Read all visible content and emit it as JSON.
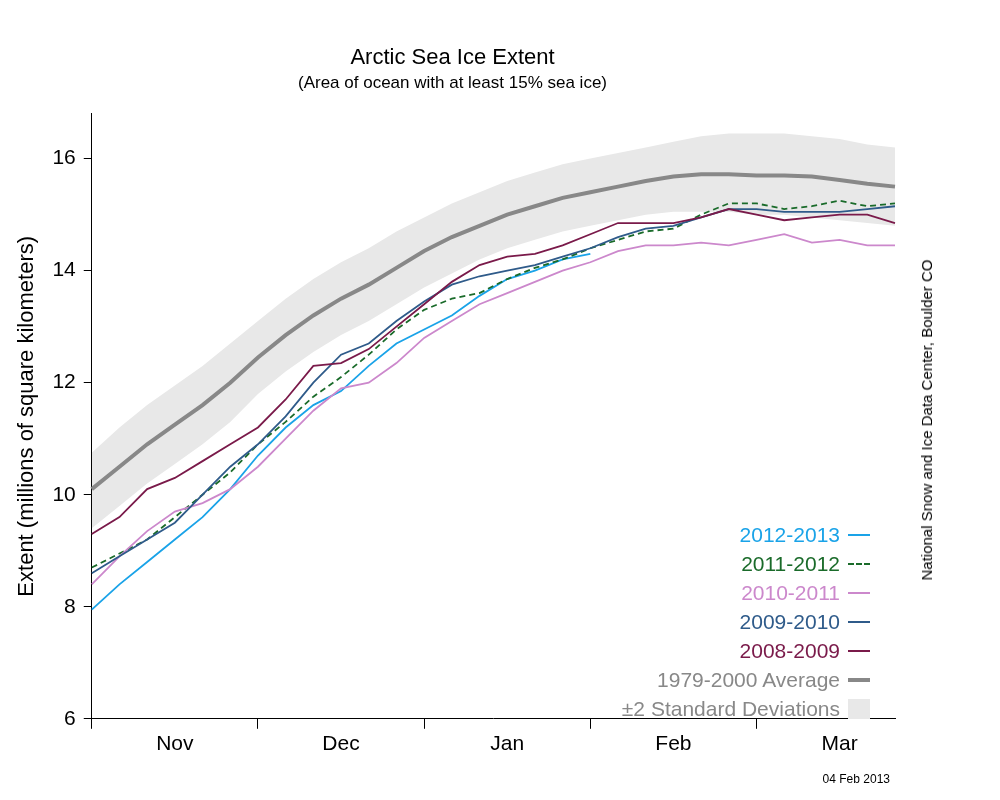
{
  "chart_data": {
    "type": "line",
    "title": "Arctic Sea Ice Extent",
    "subtitle": "(Area of ocean with at least 15% sea ice)",
    "y_label": "Extent (millions of square kilometers)",
    "source": "National Snow and Ice Data Center, Boulder CO",
    "note": "04 Feb 2013",
    "categories": [
      null,
      null,
      null,
      "Nov",
      null,
      null,
      null,
      null,
      null,
      "Dec",
      null,
      null,
      null,
      null,
      null,
      "Jan",
      null,
      null,
      null,
      null,
      null,
      "Feb",
      null,
      null,
      null,
      null,
      null,
      "Mar",
      null,
      null
    ],
    "series": [
      {
        "name": "2012-2013",
        "color": "#1aa3e8",
        "line_style": "solid",
        "values": [
          7.95,
          8.4,
          8.8,
          9.2,
          9.6,
          10.1,
          10.7,
          11.2,
          11.6,
          11.85,
          12.3,
          12.7,
          12.95,
          13.2,
          13.55,
          13.85,
          14.0,
          14.2,
          14.3,
          null,
          null,
          null,
          null,
          null,
          null,
          null,
          null,
          null,
          null,
          null
        ]
      },
      {
        "name": "2011-2012",
        "color": "#1a6b2a",
        "line_style": "dashed",
        "values": [
          8.7,
          8.95,
          9.2,
          9.6,
          10.0,
          10.4,
          10.9,
          11.3,
          11.75,
          12.1,
          12.5,
          12.95,
          13.3,
          13.5,
          13.6,
          13.85,
          14.05,
          14.2,
          14.4,
          14.55,
          14.7,
          14.75,
          15.0,
          15.2,
          15.2,
          15.1,
          15.15,
          15.25,
          15.15,
          15.2
        ]
      },
      {
        "name": "2010-2011",
        "color": "#cc88cc",
        "line_style": "solid",
        "values": [
          8.4,
          8.9,
          9.35,
          9.7,
          9.85,
          10.1,
          10.5,
          11.0,
          11.5,
          11.9,
          12.0,
          12.35,
          12.8,
          13.1,
          13.4,
          13.6,
          13.8,
          14.0,
          14.15,
          14.35,
          14.45,
          14.45,
          14.5,
          14.45,
          14.55,
          14.65,
          14.5,
          14.55,
          14.45,
          14.45
        ]
      },
      {
        "name": "2009-2010",
        "color": "#2f5b8a",
        "line_style": "solid",
        "values": [
          8.6,
          8.9,
          9.2,
          9.5,
          10.0,
          10.5,
          10.9,
          11.4,
          12.0,
          12.5,
          12.7,
          13.1,
          13.45,
          13.75,
          13.9,
          14.0,
          14.1,
          14.25,
          14.4,
          14.6,
          14.75,
          14.8,
          14.95,
          15.1,
          15.1,
          15.05,
          15.05,
          15.05,
          15.1,
          15.15
        ]
      },
      {
        "name": "2008-2009",
        "color": "#7a1a4a",
        "line_style": "solid",
        "values": [
          9.3,
          9.6,
          10.1,
          10.3,
          10.6,
          10.9,
          11.2,
          11.7,
          12.3,
          12.35,
          12.6,
          13.0,
          13.4,
          13.8,
          14.1,
          14.25,
          14.3,
          14.45,
          14.65,
          14.85,
          14.85,
          14.85,
          14.95,
          15.1,
          15.0,
          14.9,
          14.95,
          15.0,
          15.0,
          14.85
        ]
      }
    ],
    "average": {
      "name": "1979-2000 Average",
      "color": "#888888",
      "values": [
        10.1,
        10.5,
        10.9,
        11.25,
        11.6,
        12.0,
        12.45,
        12.85,
        13.2,
        13.5,
        13.75,
        14.05,
        14.35,
        14.6,
        14.8,
        15.0,
        15.15,
        15.3,
        15.4,
        15.5,
        15.6,
        15.68,
        15.72,
        15.72,
        15.7,
        15.7,
        15.68,
        15.62,
        15.55,
        15.5
      ]
    },
    "sd_band": {
      "name": "±2 Standard Deviations",
      "color": "#e8e8e8",
      "upper": [
        10.75,
        11.2,
        11.6,
        11.95,
        12.3,
        12.7,
        13.1,
        13.5,
        13.85,
        14.15,
        14.4,
        14.7,
        14.95,
        15.2,
        15.4,
        15.6,
        15.75,
        15.9,
        16.0,
        16.1,
        16.2,
        16.3,
        16.4,
        16.45,
        16.45,
        16.45,
        16.4,
        16.35,
        16.25,
        16.2
      ],
      "lower": [
        9.4,
        9.8,
        10.2,
        10.55,
        10.9,
        11.3,
        11.8,
        12.2,
        12.55,
        12.85,
        13.1,
        13.4,
        13.7,
        13.95,
        14.2,
        14.4,
        14.55,
        14.7,
        14.8,
        14.9,
        15.0,
        15.05,
        15.05,
        15.05,
        15.0,
        15.0,
        14.95,
        14.9,
        14.85,
        14.8
      ]
    },
    "ylim": [
      6,
      16.8
    ],
    "yticks": [
      6,
      8,
      10,
      12,
      14,
      16
    ],
    "grid": false,
    "legend": "lower right"
  }
}
